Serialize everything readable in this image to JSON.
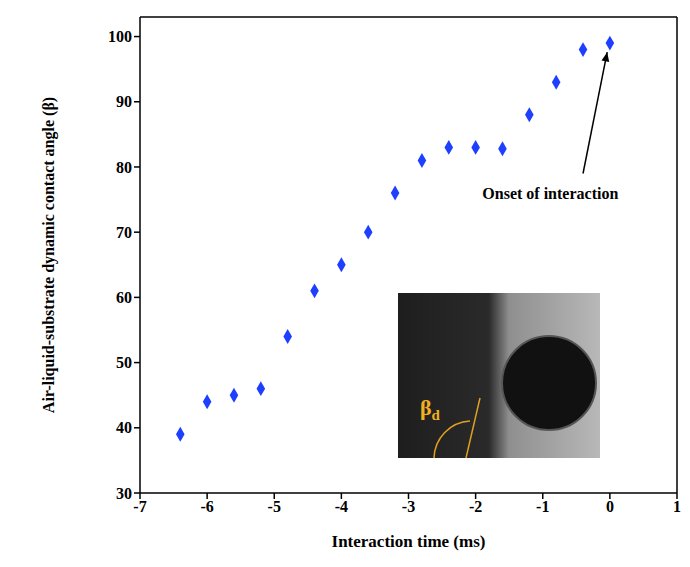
{
  "chart_data": {
    "type": "scatter",
    "x_label": "Interaction time (ms)",
    "y_label": "Air-liquid-substrate dynamic contact angle (β)",
    "x": [
      -6.4,
      -6.0,
      -5.6,
      -5.2,
      -4.8,
      -4.4,
      -4.0,
      -3.6,
      -3.2,
      -2.8,
      -2.4,
      -2.0,
      -1.6,
      -1.2,
      -0.8,
      -0.4,
      0.0
    ],
    "values": [
      39,
      44,
      45,
      46,
      54,
      61,
      65,
      70,
      76,
      81,
      83,
      83,
      82.8,
      88,
      93,
      98,
      99
    ],
    "color": "#1f3fff",
    "marker": "diamond",
    "xlim": [
      -7,
      1
    ],
    "xticks": [
      -7,
      -6,
      -5,
      -4,
      -3,
      -2,
      -1,
      0,
      1
    ],
    "ylim": [
      30,
      103
    ],
    "yticks": [
      30,
      40,
      50,
      60,
      70,
      80,
      90,
      100
    ],
    "grid": false,
    "annotations": [
      {
        "text": "Onset of interaction",
        "x": -1.9,
        "y": 77.5,
        "arrow_from": [
          -0.4,
          79
        ],
        "arrow_to": [
          -0.04,
          97.6
        ]
      }
    ],
    "inset_label": "βd"
  }
}
